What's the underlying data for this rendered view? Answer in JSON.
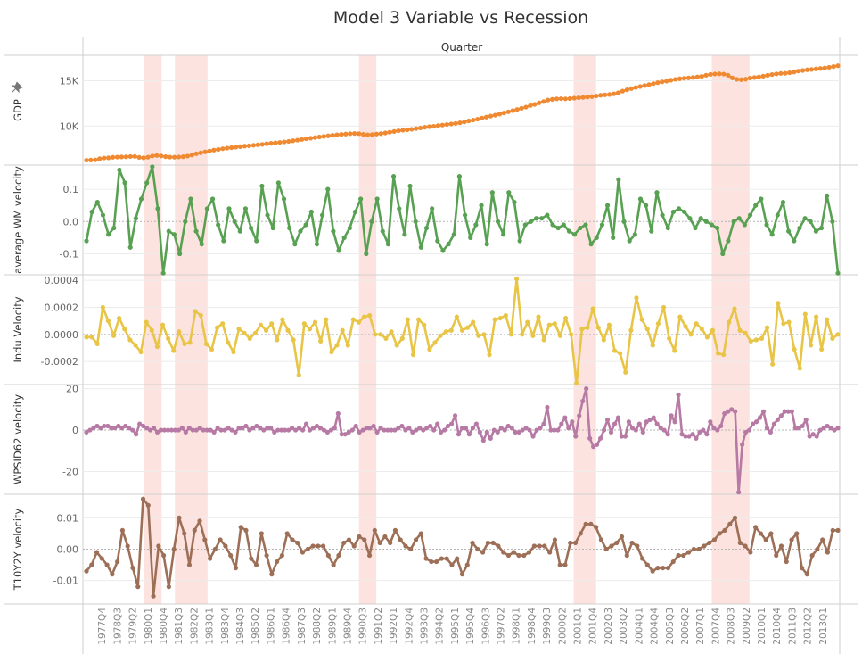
{
  "chart_data": {
    "type": "line",
    "title": "Model 3 Variable vs Recession",
    "column_header": "Quarter",
    "x_tick_labels": [
      "1977Q4",
      "1978Q3",
      "1979Q2",
      "1980Q1",
      "1980Q4",
      "1981Q3",
      "1982Q2",
      "1983Q1",
      "1983Q4",
      "1984Q3",
      "1985Q2",
      "1986Q1",
      "1986Q4",
      "1987Q3",
      "1988Q2",
      "1989Q1",
      "1989Q4",
      "1990Q3",
      "1991Q2",
      "1992Q1",
      "1992Q4",
      "1993Q3",
      "1994Q2",
      "1995Q1",
      "1995Q4",
      "1996Q3",
      "1997Q2",
      "1998Q1",
      "1998Q4",
      "1999Q3",
      "2000Q2",
      "2001Q1",
      "2001Q4",
      "2002Q3",
      "2003Q2",
      "2004Q1",
      "2004Q4",
      "2005Q3",
      "2006Q2",
      "2007Q1",
      "2007Q4",
      "2008Q3",
      "2009Q2",
      "2010Q1",
      "2010Q4",
      "2011Q3",
      "2012Q2",
      "2013Q1"
    ],
    "recessions": [
      {
        "start": "1980Q1",
        "end": "1980Q3"
      },
      {
        "start": "1981Q3",
        "end": "1982Q4"
      },
      {
        "start": "1990Q3",
        "end": "1991Q1"
      },
      {
        "start": "2001Q1",
        "end": "2001Q4"
      },
      {
        "start": "2007Q4",
        "end": "2009Q2"
      }
    ],
    "recession_color": "#fde3e0",
    "panels": [
      {
        "name": "GDP",
        "ylabel": "GDP",
        "has_pin": true,
        "color": "#ef8a32",
        "ylim": [
          5700,
          17800
        ],
        "ticks": [
          {
            "v": 10000,
            "label": "10K"
          },
          {
            "v": 15000,
            "label": "15K"
          }
        ],
        "values": [
          6232,
          6250,
          6270,
          6400,
          6480,
          6500,
          6560,
          6580,
          6600,
          6610,
          6640,
          6650,
          6550,
          6500,
          6570,
          6700,
          6750,
          6700,
          6620,
          6580,
          6570,
          6590,
          6620,
          6690,
          6800,
          6950,
          7050,
          7150,
          7250,
          7350,
          7420,
          7500,
          7570,
          7620,
          7680,
          7730,
          7790,
          7830,
          7880,
          7930,
          7980,
          8050,
          8100,
          8150,
          8200,
          8250,
          8310,
          8380,
          8450,
          8520,
          8600,
          8660,
          8730,
          8800,
          8860,
          8920,
          8980,
          9030,
          9080,
          9120,
          9160,
          9180,
          9160,
          9090,
          9040,
          9060,
          9120,
          9170,
          9240,
          9320,
          9400,
          9480,
          9540,
          9580,
          9640,
          9720,
          9790,
          9870,
          9930,
          9970,
          10050,
          10110,
          10170,
          10230,
          10290,
          10360,
          10460,
          10570,
          10660,
          10760,
          10880,
          10990,
          11100,
          11200,
          11320,
          11440,
          11570,
          11700,
          11830,
          11960,
          12090,
          12260,
          12390,
          12560,
          12700,
          12870,
          12940,
          13000,
          13020,
          13000,
          13030,
          13080,
          13120,
          13160,
          13200,
          13250,
          13320,
          13400,
          13440,
          13480,
          13560,
          13670,
          13850,
          14000,
          14130,
          14250,
          14360,
          14470,
          14570,
          14680,
          14790,
          14880,
          14960,
          15060,
          15150,
          15220,
          15270,
          15310,
          15360,
          15420,
          15480,
          15600,
          15700,
          15740,
          15760,
          15730,
          15600,
          15300,
          15150,
          15120,
          15170,
          15290,
          15350,
          15420,
          15500,
          15600,
          15680,
          15750,
          15800,
          15820,
          15880,
          15950,
          16060,
          16130,
          16200,
          16240,
          16300,
          16350,
          16400,
          16480,
          16560,
          16650
        ]
      },
      {
        "name": "WM",
        "ylabel": "average WM velocity",
        "color": "#58a052",
        "ylim": [
          -0.165,
          0.175
        ],
        "ticks": [
          {
            "v": 0.1,
            "label": "0.1"
          },
          {
            "v": 0.0,
            "label": "0.0"
          },
          {
            "v": -0.1,
            "label": "-0.1"
          }
        ],
        "values": [
          -0.06,
          0.03,
          0.06,
          0.02,
          -0.04,
          -0.02,
          0.16,
          0.12,
          -0.08,
          0.01,
          0.07,
          0.12,
          0.17,
          0.04,
          -0.16,
          -0.03,
          -0.04,
          -0.1,
          0.0,
          0.07,
          -0.03,
          -0.07,
          0.04,
          0.07,
          -0.01,
          -0.06,
          0.04,
          0.0,
          -0.03,
          0.04,
          -0.02,
          -0.06,
          0.11,
          0.02,
          -0.02,
          0.12,
          0.07,
          -0.02,
          -0.07,
          -0.03,
          -0.01,
          0.03,
          -0.07,
          0.02,
          0.1,
          -0.03,
          -0.09,
          -0.05,
          -0.02,
          0.03,
          0.07,
          -0.1,
          0.0,
          0.07,
          -0.03,
          -0.07,
          0.14,
          0.04,
          -0.04,
          0.11,
          0.0,
          -0.08,
          -0.02,
          0.04,
          -0.06,
          -0.09,
          -0.07,
          -0.04,
          0.14,
          0.02,
          -0.05,
          -0.01,
          0.05,
          -0.07,
          0.09,
          0.0,
          -0.04,
          0.09,
          0.06,
          -0.06,
          -0.01,
          0.0,
          0.01,
          0.01,
          0.02,
          -0.01,
          -0.02,
          -0.01,
          -0.03,
          -0.04,
          -0.02,
          -0.01,
          -0.07,
          -0.05,
          -0.01,
          0.05,
          -0.05,
          0.13,
          0.0,
          -0.06,
          -0.04,
          0.07,
          0.05,
          -0.03,
          0.09,
          0.02,
          -0.02,
          0.03,
          0.04,
          0.03,
          0.01,
          -0.02,
          0.01,
          0.0,
          -0.01,
          -0.02,
          -0.1,
          -0.06,
          0.0,
          0.01,
          -0.01,
          0.02,
          0.05,
          0.07,
          -0.01,
          -0.04,
          0.02,
          0.06,
          -0.03,
          -0.06,
          -0.02,
          0.01,
          0.0,
          -0.03,
          -0.02,
          0.08,
          0.0,
          -0.16
        ]
      },
      {
        "name": "Indu",
        "ylabel": "Indu Velocity",
        "color": "#e8c547",
        "ylim": [
          -0.00037,
          0.00044
        ],
        "ticks": [
          {
            "v": 0.0004,
            "label": "0.0004"
          },
          {
            "v": 0.0002,
            "label": "0.0002"
          },
          {
            "v": 0.0,
            "label": "0.0000"
          },
          {
            "v": -0.0002,
            "label": "-0.0002"
          }
        ],
        "values": [
          -2e-05,
          -2e-05,
          -7e-05,
          0.0002,
          0.0001,
          -1e-05,
          0.00012,
          4e-05,
          -4e-05,
          -8e-05,
          -0.00013,
          9e-05,
          3e-05,
          -9e-05,
          7e-05,
          -3e-05,
          -0.00012,
          2e-05,
          -7e-05,
          -6e-05,
          0.00017,
          0.00014,
          -7e-05,
          -0.00011,
          5e-05,
          8e-05,
          -6e-05,
          -0.00013,
          4e-05,
          1e-05,
          -3e-05,
          1e-05,
          7e-05,
          3e-05,
          8e-05,
          -4e-05,
          0.00011,
          3e-05,
          -4e-05,
          -0.0003,
          8e-05,
          4e-05,
          9e-05,
          -5e-05,
          0.00011,
          -0.00013,
          -8e-05,
          3e-05,
          -8e-05,
          0.00011,
          9e-05,
          0.00013,
          0.00014,
          0.0,
          0.0,
          -3e-05,
          2e-05,
          -8e-05,
          -3e-05,
          0.00011,
          -0.00015,
          0.00011,
          7e-05,
          -0.00011,
          -6e-05,
          -1e-05,
          2e-05,
          3e-05,
          0.00013,
          3e-05,
          5e-05,
          9e-05,
          -1e-05,
          0.0,
          -0.00015,
          0.00011,
          0.00012,
          0.00014,
          0.0,
          0.00041,
          0.0,
          9e-05,
          -1e-05,
          0.00013,
          -4e-05,
          7e-05,
          8e-05,
          -1e-05,
          0.00012,
          0.0,
          -0.00036,
          4e-05,
          5e-05,
          0.00019,
          5e-05,
          -4e-05,
          7e-05,
          -0.00012,
          -0.00014,
          -0.00028,
          3e-05,
          0.00027,
          0.00011,
          4e-05,
          -8e-05,
          8e-05,
          0.0002,
          -3e-05,
          -0.00012,
          0.00013,
          6e-05,
          0.0,
          8e-05,
          4e-05,
          -2e-05,
          3e-05,
          -0.00014,
          -0.00015,
          9e-05,
          0.00019,
          3e-05,
          1e-05,
          -5e-05,
          -4e-05,
          -3e-05,
          5e-05,
          -0.00022,
          0.00023,
          8e-05,
          9e-05,
          -0.00011,
          -0.00025,
          0.00015,
          -8e-05,
          0.00013,
          -0.00011,
          0.00011,
          -3e-05,
          0.0
        ]
      },
      {
        "name": "WPSID62",
        "ylabel": "WPSID62 velocity",
        "color": "#b67aa4",
        "ylim": [
          -31,
          22
        ],
        "ticks": [
          {
            "v": 20,
            "label": "20"
          },
          {
            "v": 0,
            "label": "0"
          },
          {
            "v": -20,
            "label": "-20"
          }
        ],
        "values": [
          -1,
          0,
          1,
          2,
          1,
          2,
          2,
          1,
          1,
          2,
          1,
          2,
          1,
          0,
          -2,
          3,
          2,
          1,
          0,
          1,
          -1,
          0,
          0,
          0,
          0,
          0,
          0,
          1,
          -1,
          1,
          0,
          0,
          1,
          0,
          0,
          0,
          -1,
          1,
          0,
          0,
          1,
          0,
          -1,
          1,
          1,
          2,
          0,
          1,
          2,
          1,
          0,
          1,
          1,
          -1,
          0,
          0,
          0,
          0,
          1,
          0,
          1,
          0,
          3,
          0,
          1,
          2,
          1,
          0,
          -1,
          0,
          1,
          8,
          -2,
          -2,
          -1,
          0,
          2,
          -1,
          0,
          1,
          1,
          2,
          -1,
          1,
          0,
          0,
          0,
          0,
          1,
          2,
          0,
          1,
          -1,
          0,
          1,
          0,
          1,
          2,
          0,
          3,
          -1,
          0,
          2,
          3,
          7,
          -2,
          1,
          1,
          -2,
          1,
          3,
          -1,
          -5,
          -1,
          -4,
          0,
          -1,
          1,
          0,
          2,
          1,
          -1,
          -1,
          0,
          1,
          0,
          -3,
          0,
          1,
          3,
          11,
          0,
          0,
          0,
          3,
          6,
          1,
          4,
          -3,
          7,
          14,
          20,
          -4,
          -8,
          -7,
          -4,
          0,
          5,
          -1,
          3,
          6,
          -3,
          -3,
          4,
          1,
          0,
          3,
          -1,
          4,
          5,
          6,
          3,
          1,
          0,
          -2,
          7,
          4,
          17,
          -2,
          -3,
          -3,
          -2,
          -4,
          -1,
          0,
          -2,
          4,
          1,
          0,
          2,
          8,
          9,
          10,
          9,
          -30,
          -7,
          -1,
          0,
          3,
          4,
          6,
          9,
          1,
          -1,
          3,
          5,
          7,
          9,
          9,
          9,
          1,
          1,
          2,
          5,
          -3,
          -2,
          -3,
          0,
          1,
          2,
          1,
          0,
          1
        ]
      },
      {
        "name": "T10Y2Y",
        "ylabel": "T10Y2Y velocity",
        "color": "#9d6f57",
        "ylim": [
          -0.0175,
          0.0175
        ],
        "ticks": [
          {
            "v": 0.01,
            "label": "0.01"
          },
          {
            "v": 0.0,
            "label": "0.00"
          },
          {
            "v": -0.01,
            "label": "-0.01"
          }
        ],
        "values": [
          -0.007,
          -0.005,
          -0.001,
          -0.003,
          -0.005,
          -0.008,
          -0.004,
          0.006,
          0.001,
          -0.006,
          -0.012,
          0.016,
          0.014,
          -0.015,
          0.001,
          -0.002,
          -0.012,
          0.0,
          0.01,
          0.005,
          -0.005,
          0.006,
          0.009,
          0.003,
          -0.003,
          0.0,
          0.003,
          0.001,
          -0.002,
          -0.006,
          0.007,
          0.006,
          -0.003,
          -0.005,
          0.005,
          -0.002,
          -0.008,
          -0.004,
          -0.002,
          0.005,
          0.003,
          0.002,
          -0.001,
          0.0,
          0.001,
          0.001,
          0.001,
          -0.002,
          -0.005,
          -0.002,
          0.002,
          0.003,
          0.001,
          0.004,
          0.003,
          -0.002,
          0.006,
          0.002,
          0.004,
          0.002,
          0.006,
          0.003,
          0.001,
          0.0,
          0.003,
          0.005,
          -0.003,
          -0.004,
          -0.004,
          -0.003,
          -0.003,
          -0.005,
          -0.003,
          -0.008,
          -0.005,
          0.002,
          0.0,
          -0.001,
          0.002,
          0.002,
          0.001,
          -0.001,
          -0.002,
          -0.001,
          -0.002,
          -0.002,
          -0.001,
          0.001,
          0.001,
          0.001,
          -0.001,
          0.003,
          -0.005,
          -0.005,
          0.002,
          0.002,
          0.005,
          0.008,
          0.008,
          0.007,
          0.003,
          0.0,
          0.001,
          0.002,
          0.004,
          -0.002,
          0.002,
          0.001,
          -0.003,
          -0.005,
          -0.007,
          -0.006,
          -0.006,
          -0.006,
          -0.004,
          -0.002,
          -0.002,
          -0.001,
          0.0,
          0.0,
          0.001,
          0.002,
          0.003,
          0.005,
          0.006,
          0.008,
          0.01,
          0.002,
          0.001,
          -0.001,
          0.007,
          0.005,
          0.003,
          0.005,
          -0.002,
          0.001,
          -0.004,
          0.003,
          0.005,
          -0.006,
          -0.008,
          -0.002,
          0.0,
          0.003,
          -0.001,
          0.006,
          0.006
        ]
      }
    ]
  }
}
